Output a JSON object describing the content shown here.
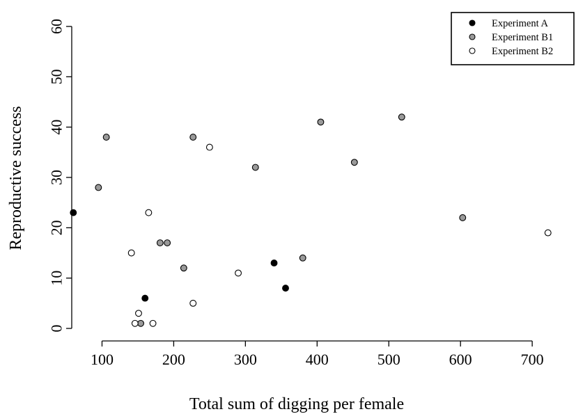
{
  "chart_data": {
    "type": "scatter",
    "title": "",
    "xlabel": "Total sum of digging per female",
    "ylabel": "Reproductive success",
    "xlim": [
      50,
      730
    ],
    "ylim": [
      0,
      60
    ],
    "xticks": [
      100,
      200,
      300,
      400,
      500,
      600,
      700
    ],
    "yticks": [
      0,
      10,
      20,
      30,
      40,
      50,
      60
    ],
    "grid": false,
    "legend_position": "top-right",
    "series": [
      {
        "name": "Experiment A",
        "marker": "filled-black",
        "color": "#000000",
        "points": [
          [
            60,
            23
          ],
          [
            160,
            6
          ],
          [
            340,
            13
          ],
          [
            356,
            8
          ]
        ]
      },
      {
        "name": "Experiment B1",
        "marker": "filled-gray",
        "color": "#9a9a9a",
        "points": [
          [
            95,
            28
          ],
          [
            106,
            38
          ],
          [
            154,
            1
          ],
          [
            181,
            17
          ],
          [
            191,
            17
          ],
          [
            214,
            12
          ],
          [
            227,
            38
          ],
          [
            314,
            32
          ],
          [
            380,
            14
          ],
          [
            405,
            41
          ],
          [
            452,
            33
          ],
          [
            518,
            42
          ],
          [
            603,
            22
          ]
        ]
      },
      {
        "name": "Experiment B2",
        "marker": "open",
        "color": "#ffffff",
        "points": [
          [
            141,
            15
          ],
          [
            146,
            1
          ],
          [
            151,
            3
          ],
          [
            165,
            23
          ],
          [
            171,
            1
          ],
          [
            227,
            5
          ],
          [
            250,
            36
          ],
          [
            290,
            11
          ],
          [
            722,
            19
          ]
        ]
      }
    ]
  }
}
